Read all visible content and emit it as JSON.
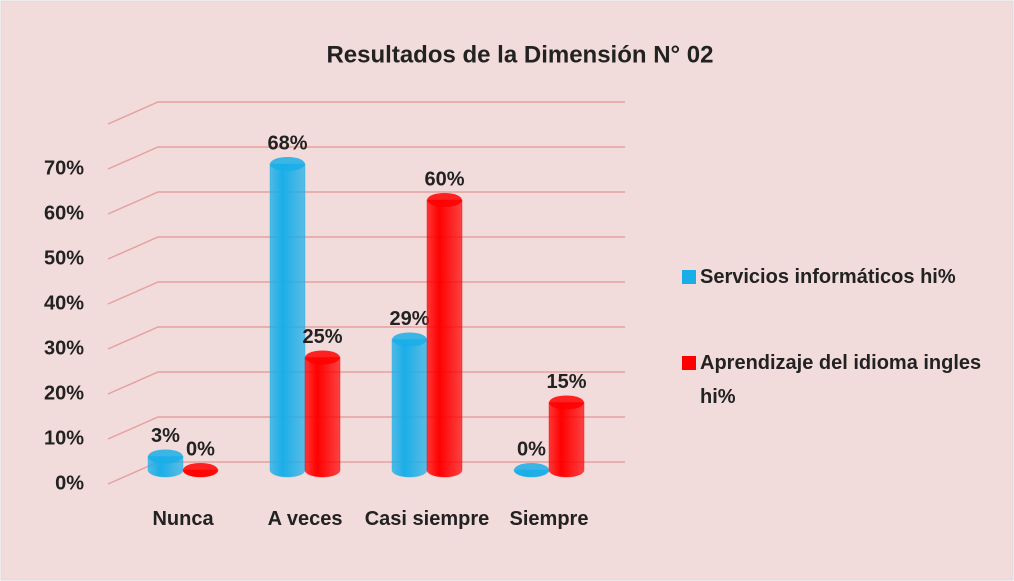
{
  "chart_data": {
    "type": "bar",
    "title": "Resultados de la Dimensión N° 02",
    "categories": [
      "Nunca",
      "A veces",
      "Casi siempre",
      "Siempre"
    ],
    "series": [
      {
        "name": "Servicios informáticos hi%",
        "color": "#1aaee8",
        "values": [
          3,
          68,
          29,
          0
        ],
        "value_labels": [
          "3%",
          "68%",
          "29%",
          "0%"
        ]
      },
      {
        "name": "Aprendizaje del idioma ingles hi%",
        "color": "#ff0000",
        "values": [
          0,
          25,
          60,
          15
        ],
        "value_labels": [
          "0%",
          "25%",
          "60%",
          "15%"
        ]
      }
    ],
    "ylim": [
      0,
      80
    ],
    "yticks": [
      {
        "value": 0,
        "label": "0%"
      },
      {
        "value": 10,
        "label": "10%"
      },
      {
        "value": 20,
        "label": "20%"
      },
      {
        "value": 30,
        "label": "30%"
      },
      {
        "value": 40,
        "label": "40%"
      },
      {
        "value": 50,
        "label": "50%"
      },
      {
        "value": 60,
        "label": "60%"
      },
      {
        "value": 70,
        "label": "70%"
      }
    ],
    "grid": true
  }
}
